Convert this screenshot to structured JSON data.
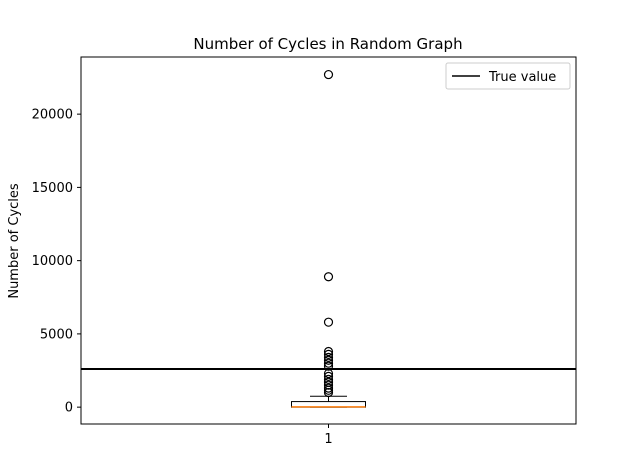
{
  "chart_data": {
    "type": "box",
    "title": "Number of Cycles in Random Graph",
    "xlabel": "",
    "ylabel": "Number of Cycles",
    "categories": [
      "1"
    ],
    "y_ticks": [
      0,
      5000,
      10000,
      15000,
      20000
    ],
    "ylim": [
      -1150,
      23900
    ],
    "box": {
      "min": 0,
      "q1": 0,
      "median": 15,
      "q3": 380,
      "whisker_high": 740,
      "outliers": [
        22700,
        8900,
        5800,
        3800,
        3600,
        3400,
        3200,
        3000,
        2800,
        2300,
        2100,
        1900,
        1700,
        1500,
        1300,
        1150,
        1000
      ]
    },
    "reference_line": {
      "label": "True value",
      "value": 2600
    },
    "legend": {
      "position": "upper right",
      "entries": [
        "True value"
      ]
    },
    "grid": false,
    "colors": {
      "median": "#ff7f0e",
      "box": "#000000",
      "reference": "#000000"
    }
  }
}
